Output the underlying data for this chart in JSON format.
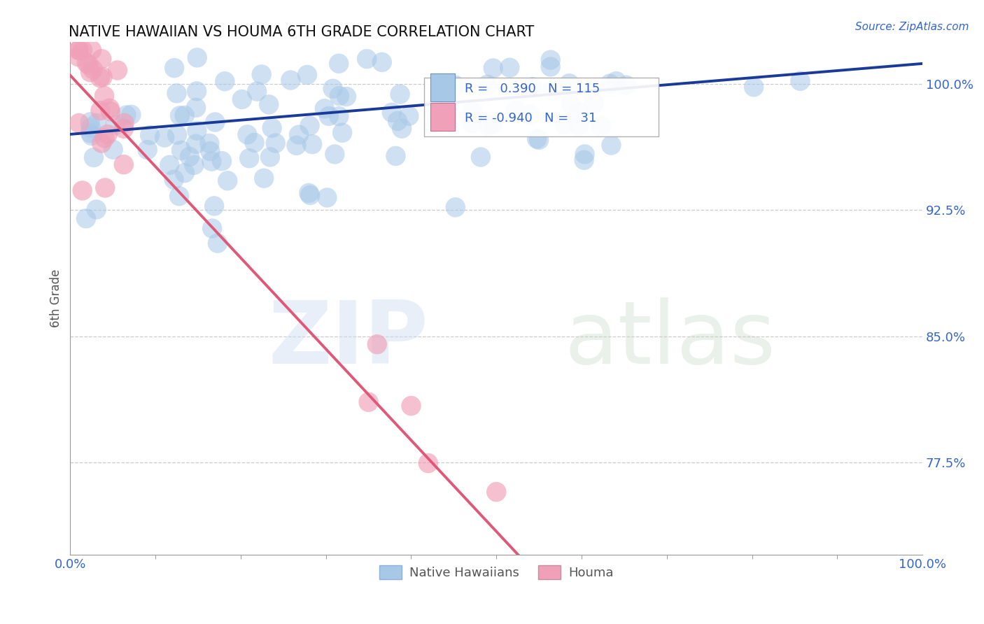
{
  "title": "NATIVE HAWAIIAN VS HOUMA 6TH GRADE CORRELATION CHART",
  "ylabel": "6th Grade",
  "source_text": "Source: ZipAtlas.com",
  "y_ticks": [
    0.775,
    0.85,
    0.925,
    1.0
  ],
  "y_tick_labels": [
    "77.5%",
    "85.0%",
    "92.5%",
    "100.0%"
  ],
  "x_lim": [
    0.0,
    1.0
  ],
  "y_lim": [
    0.72,
    1.025
  ],
  "nh_R": 0.39,
  "nh_N": 115,
  "houma_R": -0.94,
  "houma_N": 31,
  "nh_color": "#a8c8e8",
  "houma_color": "#f0a0b8",
  "nh_line_color": "#1a3a9a",
  "houma_line_color": "#e05878",
  "legend_label_nh": "Native Hawaiians",
  "legend_label_houma": "Houma",
  "background_color": "#ffffff",
  "grid_color": "#cccccc",
  "nh_trend_x": [
    0.0,
    1.0
  ],
  "nh_trend_y": [
    0.97,
    1.012
  ],
  "houma_trend_x": [
    0.0,
    0.535
  ],
  "houma_trend_y": [
    1.005,
    0.715
  ]
}
